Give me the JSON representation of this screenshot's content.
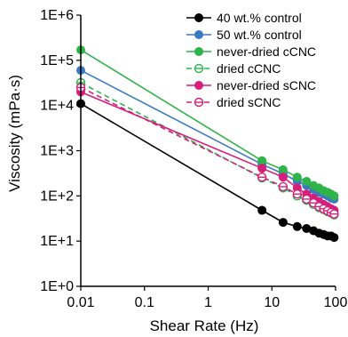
{
  "chart_data": {
    "type": "line",
    "xlabel": "Shear Rate (Hz)",
    "ylabel": "Viscosity (mPa·s)",
    "xscale": "log",
    "yscale": "log",
    "xlim": [
      0.01,
      100
    ],
    "ylim": [
      1,
      1000000
    ],
    "x_ticks": [
      "0.01",
      "0.1",
      "1",
      "10",
      "100"
    ],
    "y_ticks": [
      "1E+0",
      "1E+1",
      "1E+2",
      "1E+3",
      "1E+4",
      "1E+5",
      "1E+6"
    ],
    "legend_position": "top-right",
    "series": [
      {
        "name": "40 wt.% control",
        "color": "#000000",
        "marker": "filled-circle",
        "dash": "solid",
        "x": [
          0.01,
          7,
          15,
          25,
          35,
          45,
          55,
          65,
          75,
          85,
          95
        ],
        "y": [
          11000,
          48,
          26,
          21,
          19,
          17,
          15,
          14,
          13,
          13,
          12
        ]
      },
      {
        "name": "50 wt.% control",
        "color": "#3a7ac2",
        "marker": "filled-circle",
        "dash": "solid",
        "x": [
          0.01,
          7,
          15,
          25,
          35,
          45,
          55,
          65,
          75,
          85,
          95
        ],
        "y": [
          60000,
          500,
          310,
          210,
          170,
          140,
          120,
          110,
          100,
          90,
          85
        ]
      },
      {
        "name": "never-dried cCNC",
        "color": "#2fb34a",
        "marker": "filled-circle",
        "dash": "solid",
        "x": [
          0.01,
          7,
          15,
          25,
          35,
          45,
          55,
          65,
          75,
          85,
          95
        ],
        "y": [
          170000,
          600,
          380,
          260,
          210,
          170,
          150,
          130,
          120,
          110,
          100
        ]
      },
      {
        "name": "dried cCNC",
        "color": "#2fb34a",
        "marker": "open-circle-bar",
        "dash": "dashed",
        "x": [
          0.01,
          7,
          15,
          25,
          35,
          45,
          55,
          65,
          75,
          85,
          95
        ],
        "y": [
          32000,
          250,
          150,
          100,
          80,
          65,
          55,
          50,
          45,
          42,
          38
        ]
      },
      {
        "name": "never-dried sCNC",
        "color": "#d61f7b",
        "marker": "filled-circle",
        "dash": "solid",
        "x": [
          0.01,
          7,
          15,
          25,
          35,
          45,
          55,
          65,
          75,
          85,
          95
        ],
        "y": [
          20000,
          410,
          260,
          150,
          110,
          90,
          75,
          65,
          58,
          52,
          48
        ]
      },
      {
        "name": "dried sCNC",
        "color": "#d61f7b",
        "marker": "open-circle-bar",
        "dash": "dashed",
        "x": [
          0.01,
          7,
          15,
          25,
          35,
          45,
          55,
          65,
          75,
          85,
          95
        ],
        "y": [
          25000,
          260,
          160,
          110,
          85,
          70,
          58,
          52,
          47,
          43,
          40
        ]
      }
    ]
  }
}
